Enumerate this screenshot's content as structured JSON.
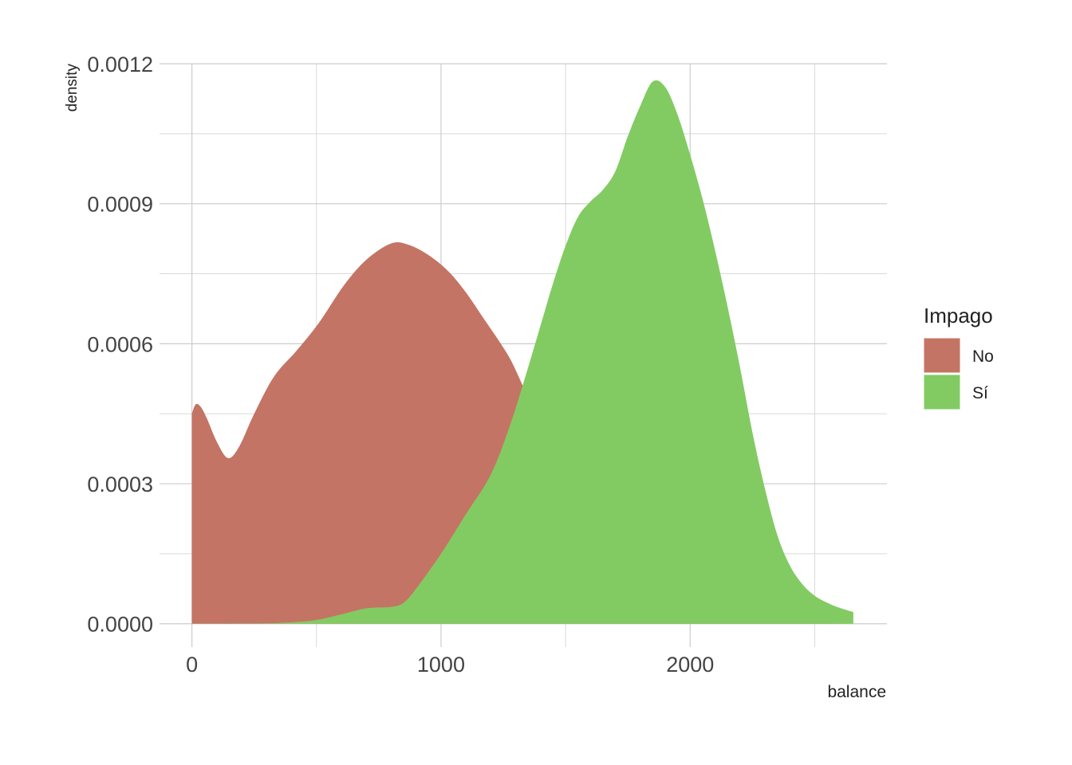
{
  "chart_data": {
    "type": "area",
    "title": "",
    "xlabel": "balance",
    "ylabel": "density",
    "xlim": [
      -130,
      2790
    ],
    "ylim": [
      -5e-05,
      0.0012
    ],
    "x_ticks": [
      0,
      1000,
      2000
    ],
    "x_tick_labels": [
      "0",
      "1000",
      "2000"
    ],
    "x_minor_ticks": [
      500,
      1500,
      2500
    ],
    "y_ticks": [
      0.0,
      0.0003,
      0.0006,
      0.0009,
      0.0012
    ],
    "y_tick_labels": [
      "0.0000",
      "0.0003",
      "0.0006",
      "0.0009",
      "0.0012"
    ],
    "y_minor_ticks": [
      0.00015,
      0.00045,
      0.00075,
      0.00105
    ],
    "grid": true,
    "legend": {
      "title": "Impago",
      "position": "right"
    },
    "series": [
      {
        "name": "No",
        "color": "#c47464",
        "x": [
          0,
          15,
          35,
          60,
          100,
          145,
          190,
          250,
          330,
          420,
          510,
          610,
          700,
          800,
          870,
          950,
          1030,
          1100,
          1170,
          1230,
          1280,
          1330,
          1380,
          1430,
          1480,
          1540,
          1600,
          1700,
          1800,
          1900,
          2000,
          2100,
          2200,
          2300,
          2400,
          2500,
          2600,
          2655
        ],
        "values": [
          0.00045,
          0.00047,
          0.000465,
          0.00044,
          0.00039,
          0.000355,
          0.00038,
          0.00045,
          0.00053,
          0.000585,
          0.000645,
          0.000725,
          0.00078,
          0.000815,
          0.000812,
          0.00079,
          0.000755,
          0.00071,
          0.000655,
          0.000608,
          0.000565,
          0.000508,
          0.000448,
          0.00038,
          0.000312,
          0.000245,
          0.000185,
          0.00011,
          6e-05,
          3e-05,
          1.4e-05,
          6e-06,
          3e-06,
          2e-06,
          1e-06,
          5e-07,
          2e-07,
          0.0
        ]
      },
      {
        "name": "Sí",
        "color": "#82cb62",
        "x": [
          0,
          200,
          300,
          400,
          500,
          600,
          700,
          800,
          850,
          900,
          1000,
          1100,
          1200,
          1280,
          1350,
          1400,
          1450,
          1500,
          1550,
          1600,
          1650,
          1700,
          1750,
          1800,
          1850,
          1900,
          1950,
          2000,
          2050,
          2100,
          2150,
          2200,
          2250,
          2300,
          2350,
          2400,
          2450,
          2500,
          2550,
          2600,
          2655
        ],
        "values": [
          0.0,
          5e-07,
          1e-06,
          3e-06,
          8e-06,
          2e-05,
          3.3e-05,
          3.6e-05,
          4.5e-05,
          7.5e-05,
          0.00015,
          0.000235,
          0.00032,
          0.00043,
          0.00055,
          0.00064,
          0.00073,
          0.00081,
          0.000872,
          0.000905,
          0.00093,
          0.00097,
          0.001045,
          0.00111,
          0.001162,
          0.00115,
          0.00109,
          0.001005,
          0.00091,
          0.0008,
          0.00068,
          0.00055,
          0.00041,
          0.00029,
          0.00019,
          0.000125,
          8.5e-05,
          6e-05,
          4.5e-05,
          3.4e-05,
          2.5e-05
        ]
      }
    ]
  }
}
